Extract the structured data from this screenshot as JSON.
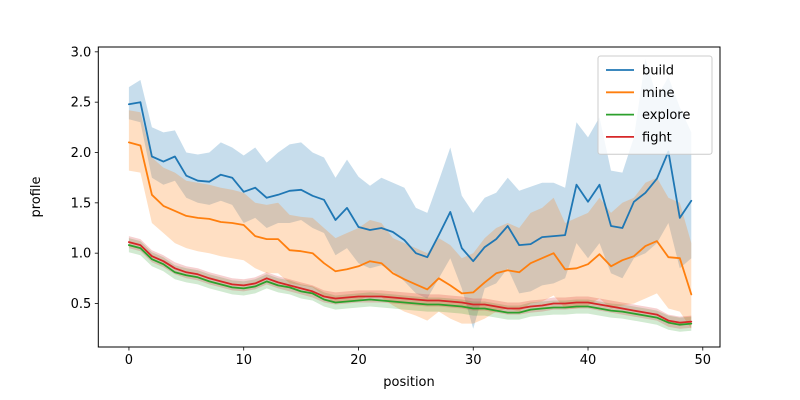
{
  "chart_data": {
    "type": "line",
    "title": "",
    "xlabel": "position",
    "ylabel": "profile",
    "x_ticks": [
      "0",
      "10",
      "20",
      "30",
      "40",
      "50"
    ],
    "x_tick_values": [
      0,
      10,
      20,
      30,
      40,
      50
    ],
    "y_ticks": [
      "0.5",
      "1.0",
      "1.5",
      "2.0",
      "2.5",
      "3.0"
    ],
    "y_tick_values": [
      0.5,
      1.0,
      1.5,
      2.0,
      2.5,
      3.0
    ],
    "xlim": [
      -2.67,
      51.5
    ],
    "ylim": [
      0.068,
      3.048
    ],
    "grid": false,
    "legend_position": "upper right",
    "x": [
      0,
      1,
      2,
      3,
      4,
      5,
      6,
      7,
      8,
      9,
      10,
      11,
      12,
      13,
      14,
      15,
      16,
      17,
      18,
      19,
      20,
      21,
      22,
      23,
      24,
      25,
      26,
      27,
      28,
      29,
      30,
      31,
      32,
      33,
      34,
      35,
      36,
      37,
      38,
      39,
      40,
      41,
      42,
      43,
      44,
      45,
      46,
      47,
      48,
      49
    ],
    "series": [
      {
        "name": "build",
        "color": "#1f77b4",
        "band_opacity": 0.25,
        "values": [
          2.48,
          2.5,
          1.96,
          1.91,
          1.96,
          1.77,
          1.72,
          1.71,
          1.78,
          1.75,
          1.61,
          1.65,
          1.55,
          1.58,
          1.62,
          1.63,
          1.57,
          1.53,
          1.33,
          1.45,
          1.26,
          1.23,
          1.25,
          1.21,
          1.13,
          1.0,
          0.96,
          1.18,
          1.41,
          1.05,
          0.92,
          1.06,
          1.14,
          1.27,
          1.08,
          1.09,
          1.16,
          1.17,
          1.18,
          1.68,
          1.51,
          1.68,
          1.27,
          1.25,
          1.51,
          1.6,
          1.74,
          2.01,
          1.35,
          1.52
        ],
        "band_upper": [
          2.65,
          2.72,
          2.25,
          2.2,
          2.22,
          2.0,
          1.98,
          2.0,
          2.1,
          2.05,
          1.97,
          2.05,
          1.9,
          2.0,
          2.08,
          2.1,
          2.0,
          1.95,
          1.75,
          1.93,
          1.76,
          1.67,
          1.75,
          1.7,
          1.65,
          1.45,
          1.4,
          1.72,
          2.05,
          1.57,
          1.4,
          1.55,
          1.6,
          1.75,
          1.62,
          1.66,
          1.7,
          1.7,
          1.65,
          2.3,
          2.15,
          2.35,
          1.82,
          1.8,
          2.15,
          2.93,
          2.55,
          2.75,
          2.45,
          2.2
        ],
        "band_lower": [
          2.33,
          2.3,
          1.75,
          1.68,
          1.72,
          1.55,
          1.5,
          1.48,
          1.52,
          1.48,
          1.3,
          1.35,
          1.25,
          1.3,
          1.3,
          1.33,
          1.25,
          1.2,
          0.98,
          1.05,
          0.9,
          0.85,
          0.88,
          0.82,
          0.72,
          0.6,
          0.55,
          0.75,
          0.95,
          0.65,
          0.25,
          0.65,
          0.7,
          0.85,
          0.6,
          0.62,
          0.68,
          0.7,
          0.75,
          1.1,
          0.95,
          1.1,
          0.8,
          0.75,
          0.95,
          1.0,
          1.1,
          1.3,
          0.85,
          0.95
        ]
      },
      {
        "name": "mine",
        "color": "#ff7f0e",
        "band_opacity": 0.25,
        "values": [
          2.1,
          2.07,
          1.58,
          1.47,
          1.42,
          1.37,
          1.35,
          1.34,
          1.31,
          1.3,
          1.28,
          1.17,
          1.14,
          1.14,
          1.03,
          1.02,
          1.0,
          0.9,
          0.82,
          0.84,
          0.87,
          0.92,
          0.9,
          0.8,
          0.74,
          0.69,
          0.64,
          0.75,
          0.68,
          0.6,
          0.61,
          0.71,
          0.8,
          0.83,
          0.81,
          0.9,
          0.95,
          1.0,
          0.84,
          0.85,
          0.89,
          0.99,
          0.87,
          0.93,
          0.97,
          1.07,
          1.12,
          0.96,
          0.95,
          0.59
        ],
        "band_upper": [
          2.42,
          2.4,
          1.95,
          1.85,
          1.8,
          1.72,
          1.7,
          1.68,
          1.65,
          1.63,
          1.6,
          1.5,
          1.48,
          1.5,
          1.38,
          1.36,
          1.35,
          1.25,
          1.15,
          1.2,
          1.25,
          1.33,
          1.3,
          1.15,
          1.1,
          1.05,
          1.0,
          1.15,
          1.08,
          0.95,
          1.0,
          1.15,
          1.25,
          1.3,
          1.25,
          1.4,
          1.45,
          1.55,
          1.3,
          1.35,
          1.4,
          1.55,
          1.4,
          1.5,
          1.55,
          1.7,
          1.75,
          1.55,
          1.5,
          1.1
        ],
        "band_lower": [
          1.82,
          1.8,
          1.3,
          1.2,
          1.1,
          1.05,
          1.02,
          1.0,
          0.97,
          0.95,
          0.93,
          0.85,
          0.8,
          0.8,
          0.7,
          0.68,
          0.66,
          0.58,
          0.5,
          0.52,
          0.53,
          0.58,
          0.56,
          0.48,
          0.42,
          0.38,
          0.33,
          0.42,
          0.35,
          0.3,
          0.3,
          0.35,
          0.42,
          0.45,
          0.42,
          0.5,
          0.52,
          0.58,
          0.45,
          0.45,
          0.48,
          0.55,
          0.45,
          0.48,
          0.5,
          0.55,
          0.6,
          0.45,
          0.42,
          0.25
        ]
      },
      {
        "name": "explore",
        "color": "#2ca02c",
        "band_opacity": 0.22,
        "band_halfwidth": 0.07,
        "values": [
          1.08,
          1.05,
          0.94,
          0.89,
          0.81,
          0.78,
          0.76,
          0.72,
          0.69,
          0.66,
          0.65,
          0.67,
          0.72,
          0.68,
          0.66,
          0.62,
          0.6,
          0.54,
          0.51,
          0.52,
          0.53,
          0.54,
          0.53,
          0.52,
          0.51,
          0.5,
          0.49,
          0.49,
          0.48,
          0.47,
          0.45,
          0.45,
          0.43,
          0.41,
          0.41,
          0.44,
          0.45,
          0.46,
          0.46,
          0.47,
          0.47,
          0.45,
          0.43,
          0.42,
          0.4,
          0.38,
          0.36,
          0.31,
          0.29,
          0.3
        ]
      },
      {
        "name": "fight",
        "color": "#d62728",
        "band_opacity": 0.22,
        "band_halfwidth": 0.06,
        "values": [
          1.11,
          1.08,
          0.97,
          0.92,
          0.85,
          0.81,
          0.79,
          0.75,
          0.72,
          0.69,
          0.68,
          0.7,
          0.75,
          0.71,
          0.68,
          0.65,
          0.62,
          0.57,
          0.55,
          0.56,
          0.57,
          0.57,
          0.57,
          0.56,
          0.55,
          0.54,
          0.53,
          0.53,
          0.52,
          0.51,
          0.49,
          0.49,
          0.47,
          0.45,
          0.45,
          0.47,
          0.48,
          0.5,
          0.5,
          0.51,
          0.51,
          0.49,
          0.47,
          0.45,
          0.43,
          0.41,
          0.39,
          0.33,
          0.31,
          0.32
        ]
      }
    ]
  },
  "legend": {
    "items": [
      "build",
      "mine",
      "explore",
      "fight"
    ]
  }
}
